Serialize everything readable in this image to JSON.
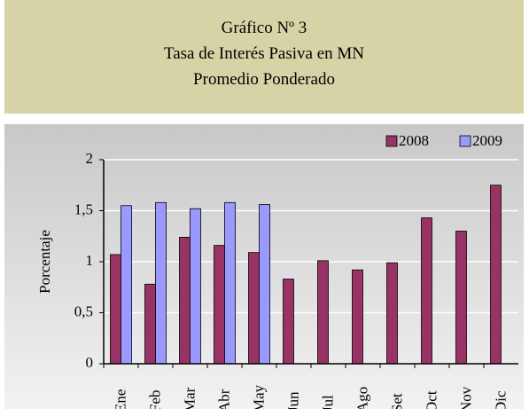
{
  "header": {
    "lines": [
      "Gráfico Nº 3",
      "Tasa de Interés Pasiva en MN",
      "Promedio Ponderado"
    ]
  },
  "chart_data": {
    "type": "bar",
    "ylabel": "Porcentaje",
    "categories": [
      "Ene",
      "Feb",
      "Mar",
      "Abr",
      "May",
      "Jun",
      "Jul",
      "Ago",
      "Set",
      "Oct",
      "Nov",
      "Dic"
    ],
    "series": [
      {
        "name": "2008",
        "color": "#993366",
        "values": [
          1.07,
          0.78,
          1.24,
          1.16,
          1.09,
          0.83,
          1.01,
          0.92,
          0.99,
          1.43,
          1.3,
          1.75
        ]
      },
      {
        "name": "2009",
        "color": "#9999ff",
        "values": [
          1.55,
          1.58,
          1.52,
          1.58,
          1.56,
          null,
          null,
          null,
          null,
          null,
          null,
          null
        ]
      }
    ],
    "ylim": [
      0,
      2
    ],
    "yticks": [
      0,
      {
        "value": 0.5,
        "label": "0,5"
      },
      1,
      {
        "value": 1.5,
        "label": "1,5"
      },
      2
    ],
    "grid": true,
    "legend": "top-right"
  }
}
